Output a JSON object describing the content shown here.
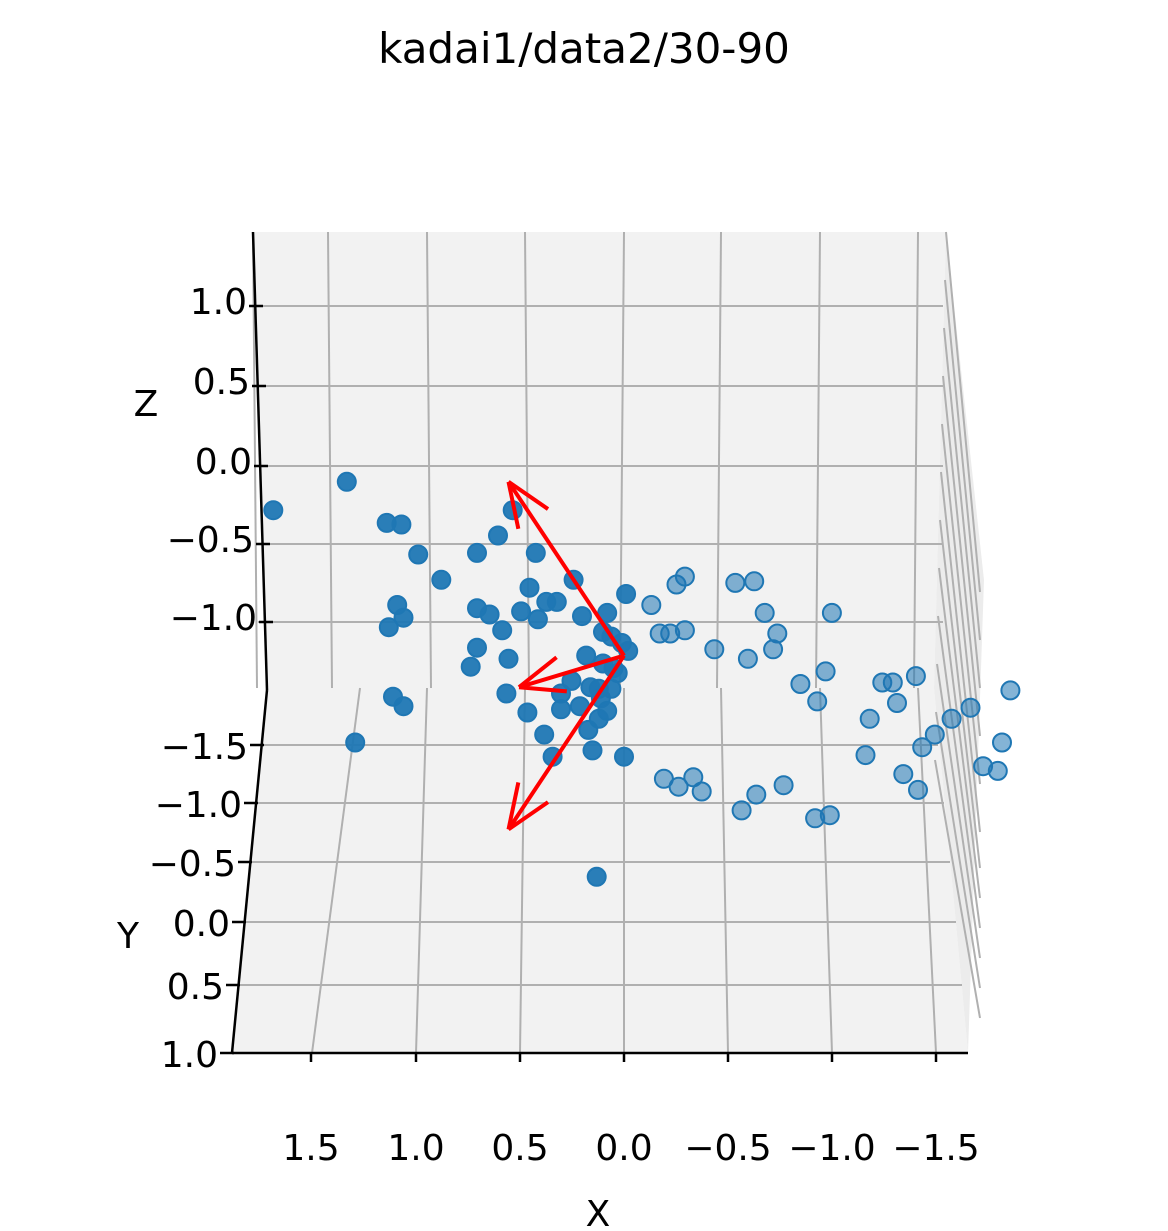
{
  "chart_data": {
    "type": "scatter",
    "title": "kadai1/data2/30-90",
    "xlabel": "X",
    "ylabel": "Y",
    "zlabel": "Z",
    "projection": "3d",
    "view": {
      "elev": 30,
      "azim": 90
    },
    "grid": true,
    "xticks": [
      "1.5",
      "1.0",
      "0.5",
      "0.0",
      "−0.5",
      "−1.0",
      "−1.5"
    ],
    "yticks": [
      "−1.5",
      "−1.0",
      "−0.5",
      "0.0",
      "0.5",
      "1.0"
    ],
    "zticks": [
      "1.0",
      "0.5",
      "0.0",
      "−0.5",
      "−1.0"
    ],
    "colors": {
      "points": "#1f77b4",
      "arrows": "#ff0000",
      "grid": "#b0b0b0",
      "pane": "#f2f2f2"
    },
    "series": [
      {
        "marker": "circle",
        "points_xz": [
          [
            1.67,
            -0.28
          ],
          [
            1.32,
            -0.1
          ],
          [
            1.13,
            -0.36
          ],
          [
            1.06,
            -0.37
          ],
          [
            0.98,
            -0.56
          ],
          [
            0.87,
            -0.72
          ],
          [
            0.7,
            -0.55
          ],
          [
            0.6,
            -0.44
          ],
          [
            0.53,
            -0.28
          ],
          [
            0.24,
            -0.72
          ],
          [
            0.45,
            -0.77
          ],
          [
            0.42,
            -0.55
          ],
          [
            1.08,
            -0.88
          ],
          [
            1.12,
            -1.02
          ],
          [
            1.05,
            -0.96
          ],
          [
            0.7,
            -0.9
          ],
          [
            0.64,
            -0.94
          ],
          [
            0.58,
            -1.04
          ],
          [
            0.49,
            -0.92
          ],
          [
            0.41,
            -0.97
          ],
          [
            0.37,
            -0.86
          ],
          [
            0.32,
            -0.86
          ],
          [
            0.2,
            -0.95
          ],
          [
            0.08,
            -0.93
          ],
          [
            0.1,
            -1.05
          ],
          [
            0.06,
            -1.08
          ],
          [
            0.01,
            -1.12
          ],
          [
            -0.02,
            -1.17
          ],
          [
            0.05,
            -1.28
          ],
          [
            0.12,
            -1.41
          ],
          [
            0.16,
            -1.4
          ],
          [
            0.25,
            -1.36
          ],
          [
            0.21,
            -1.52
          ],
          [
            0.3,
            -1.54
          ],
          [
            0.38,
            -1.7
          ],
          [
            0.46,
            -1.56
          ],
          [
            0.56,
            -1.44
          ],
          [
            0.7,
            -1.15
          ],
          [
            0.73,
            -1.27
          ],
          [
            1.1,
            -1.46
          ],
          [
            1.05,
            -1.52
          ],
          [
            1.28,
            -1.75
          ],
          [
            0.0,
            -1.84
          ],
          [
            -0.01,
            -0.81
          ],
          [
            -0.13,
            -0.88
          ],
          [
            -0.25,
            -0.75
          ],
          [
            -0.29,
            -0.7
          ],
          [
            -0.53,
            -0.74
          ],
          [
            -0.62,
            -0.73
          ],
          [
            -0.67,
            -0.93
          ],
          [
            -0.73,
            -1.06
          ],
          [
            -0.84,
            -1.38
          ],
          [
            -0.92,
            -1.49
          ],
          [
            -0.99,
            -0.93
          ],
          [
            -0.96,
            -1.3
          ],
          [
            -0.17,
            -1.06
          ],
          [
            -0.22,
            -1.06
          ],
          [
            -0.29,
            -1.04
          ],
          [
            -0.43,
            -1.16
          ],
          [
            -0.59,
            -1.22
          ],
          [
            -0.71,
            -1.16
          ],
          [
            -0.19,
            -1.98
          ],
          [
            -0.26,
            -2.03
          ],
          [
            -0.33,
            -1.97
          ],
          [
            -0.37,
            -2.06
          ],
          [
            -0.56,
            -2.18
          ],
          [
            -0.63,
            -2.08
          ],
          [
            -0.76,
            -2.02
          ],
          [
            -0.91,
            -2.23
          ],
          [
            -0.98,
            -2.21
          ],
          [
            -1.17,
            -1.6
          ],
          [
            -1.23,
            -1.37
          ],
          [
            -1.28,
            -1.37
          ],
          [
            -1.3,
            -1.5
          ],
          [
            -1.39,
            -1.33
          ],
          [
            -1.42,
            -1.78
          ],
          [
            -1.48,
            -1.7
          ],
          [
            -1.56,
            -1.6
          ],
          [
            -1.65,
            -1.53
          ],
          [
            -1.84,
            -1.42
          ],
          [
            -1.71,
            -1.9
          ],
          [
            -1.78,
            -1.93
          ],
          [
            -1.8,
            -1.75
          ],
          [
            -1.15,
            -1.83
          ],
          [
            -1.33,
            -1.95
          ],
          [
            -1.4,
            -2.05
          ],
          [
            0.13,
            -2.6
          ],
          [
            0.34,
            -1.84
          ],
          [
            0.3,
            -1.44
          ],
          [
            0.03,
            -1.31
          ],
          [
            0.1,
            -1.25
          ],
          [
            0.18,
            -1.2
          ],
          [
            0.08,
            -1.55
          ],
          [
            0.12,
            -1.6
          ],
          [
            0.17,
            -1.67
          ],
          [
            0.15,
            -1.8
          ],
          [
            0.06,
            -1.41
          ],
          [
            0.11,
            -1.47
          ],
          [
            0.55,
            -1.22
          ]
        ]
      }
    ],
    "arrows_xz": [
      [
        0.0,
        -1.2,
        0.55,
        -0.1
      ],
      [
        0.0,
        -1.2,
        0.5,
        -1.4
      ],
      [
        0.0,
        -1.2,
        0.55,
        -2.3
      ]
    ]
  }
}
